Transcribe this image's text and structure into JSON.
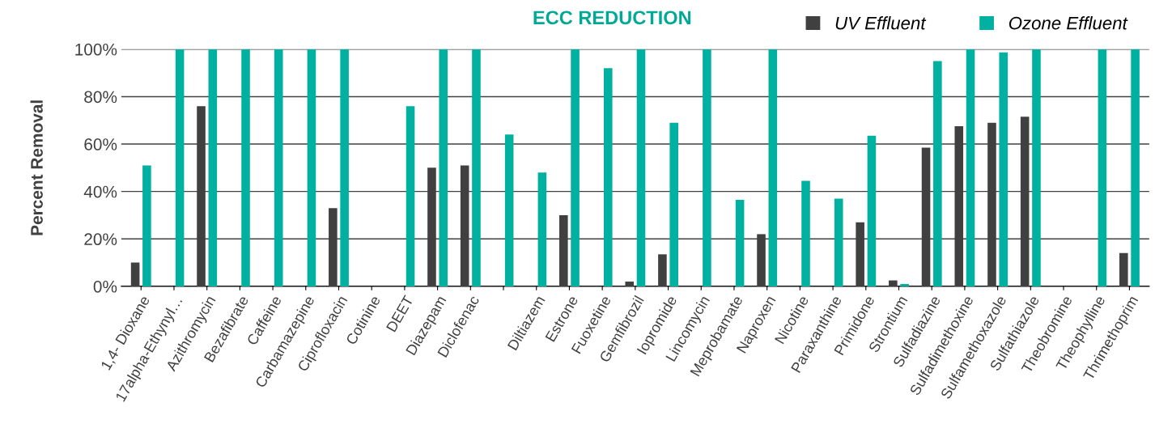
{
  "chart_data": {
    "type": "bar",
    "title": "ECC REDUCTION",
    "ylabel": "Percent Removal",
    "categories": [
      "1,4- Dioxane",
      "17alpha-Ethynyl…",
      "Azithromycin",
      "Bezafibrate",
      "Caffeine",
      "Carbamazepine",
      "Ciprofloxacin",
      "Cotinine",
      "DEET",
      "Diazepam",
      "Diclofenac",
      null,
      "Diltiazem",
      "Estrone",
      "Fuoxetine",
      "Gemfibrozil",
      "Iopromide",
      "Lincomycin",
      "Meprobamate",
      "Naproxen",
      "Nicotine",
      "Paraxanthine",
      "Primidone",
      "Strontium",
      "Sulfadiazine",
      "Sulfadimethoxine",
      "Sulfamethoxazole",
      "Sulfathiazole",
      "Theobromine",
      "Theophylline",
      "Thrimethoprim"
    ],
    "series": [
      {
        "name": "UV Effluent",
        "color": "#404040",
        "values": [
          10,
          0,
          76,
          0,
          0,
          0,
          33,
          0,
          0,
          50,
          51,
          0,
          0,
          30,
          0,
          2,
          13.5,
          0,
          0,
          22,
          0,
          0,
          27,
          2.5,
          58.5,
          67.5,
          69,
          71.5,
          0,
          0,
          14
        ]
      },
      {
        "name": "Ozone Effluent",
        "color": "#00b0a0",
        "values": [
          51,
          100,
          100,
          100,
          100,
          100,
          100,
          0,
          76,
          100,
          100,
          64,
          48,
          100,
          92,
          100,
          69,
          100,
          36.5,
          100,
          44.5,
          37,
          63.5,
          1,
          95,
          100,
          98.7,
          100,
          0,
          100,
          100
        ]
      }
    ],
    "ylim": [
      0,
      100
    ],
    "yticks": [
      {
        "value": 0,
        "label": "0%"
      },
      {
        "value": 20,
        "label": "20%"
      },
      {
        "value": 40,
        "label": "40%"
      },
      {
        "value": 60,
        "label": "60%"
      },
      {
        "value": 80,
        "label": "80%"
      },
      {
        "value": 100,
        "label": "100%"
      }
    ],
    "grid": "y",
    "legend": "top right"
  }
}
